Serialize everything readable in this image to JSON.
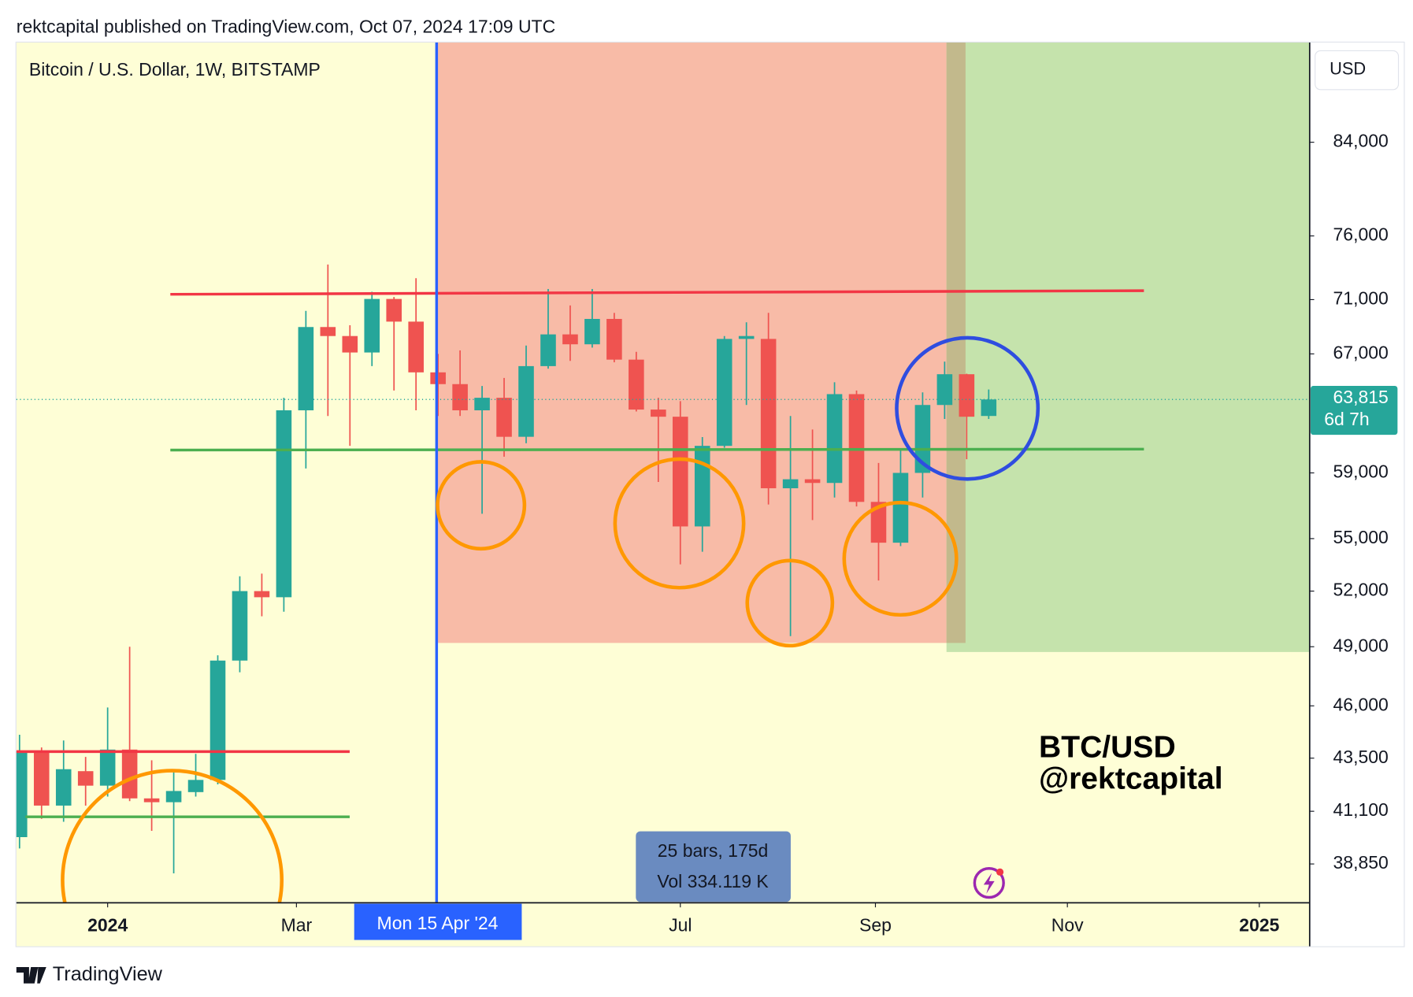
{
  "header": "rektcapital published on TradingView.com, Oct 07, 2024 17:09 UTC",
  "brand": "TradingView",
  "chart_data": {
    "type": "candlestick",
    "title": "Bitcoin / U.S. Dollar, 1W, BITSTAMP",
    "currency": "USD",
    "x": [
      "2023-12-04",
      "2023-12-11",
      "2023-12-18",
      "2023-12-25",
      "2024-01-01",
      "2024-01-08",
      "2024-01-15",
      "2024-01-22",
      "2024-01-29",
      "2024-02-05",
      "2024-02-12",
      "2024-02-19",
      "2024-02-26",
      "2024-03-04",
      "2024-03-11",
      "2024-03-18",
      "2024-03-25",
      "2024-04-01",
      "2024-04-08",
      "2024-04-15",
      "2024-04-22",
      "2024-04-29",
      "2024-05-06",
      "2024-05-13",
      "2024-05-20",
      "2024-05-27",
      "2024-06-03",
      "2024-06-10",
      "2024-06-17",
      "2024-06-24",
      "2024-07-01",
      "2024-07-08",
      "2024-07-15",
      "2024-07-22",
      "2024-07-29",
      "2024-08-05",
      "2024-08-12",
      "2024-08-19",
      "2024-08-26",
      "2024-09-02",
      "2024-09-09",
      "2024-09-16",
      "2024-09-23",
      "2024-09-30",
      "2024-10-07"
    ],
    "open": [
      39980,
      43830,
      41350,
      42900,
      42240,
      43900,
      41670,
      41500,
      41950,
      42500,
      48280,
      52000,
      51660,
      63080,
      68950,
      68290,
      67100,
      71050,
      69350,
      65690,
      64870,
      63080,
      63930,
      61320,
      66130,
      68410,
      67690,
      69550,
      66590,
      63130,
      62650,
      55720,
      60730,
      68080,
      68080,
      58040,
      58600,
      58370,
      64180,
      57200,
      54760,
      59000,
      63440,
      65560,
      62700
    ],
    "high": [
      44600,
      44000,
      44330,
      43560,
      45920,
      49000,
      43400,
      42900,
      43700,
      48550,
      52830,
      52980,
      63930,
      70150,
      73710,
      69080,
      71600,
      71200,
      72640,
      67000,
      67250,
      64740,
      65300,
      67600,
      71810,
      70560,
      71810,
      70000,
      67150,
      63930,
      63700,
      61300,
      68290,
      69300,
      70000,
      62700,
      61800,
      65000,
      64430,
      59630,
      60500,
      64300,
      66450,
      65600,
      64500
    ],
    "low": [
      39500,
      40770,
      40640,
      41350,
      41750,
      41550,
      40250,
      38460,
      41750,
      42300,
      47680,
      50620,
      50870,
      59280,
      62700,
      60730,
      66130,
      64430,
      63080,
      62700,
      62700,
      56480,
      60030,
      60900,
      65950,
      66500,
      67450,
      66400,
      63000,
      58430,
      53510,
      54230,
      60600,
      63440,
      57040,
      49560,
      56100,
      57470,
      56920,
      52590,
      54560,
      57470,
      62500,
      59870,
      62500
    ],
    "close": [
      43830,
      41350,
      42990,
      42240,
      43900,
      41670,
      41500,
      42000,
      42500,
      48280,
      52000,
      51660,
      63080,
      68950,
      68290,
      67100,
      71050,
      69350,
      65690,
      64870,
      63080,
      63930,
      61320,
      66130,
      68410,
      67690,
      69550,
      66590,
      63130,
      62650,
      55720,
      60730,
      68080,
      68290,
      58040,
      58600,
      58370,
      64180,
      57200,
      54760,
      59000,
      63440,
      65560,
      62650,
      63815
    ],
    "up_color": "#26a69a",
    "down_color": "#ef5350",
    "log_scale": true,
    "xlim": [
      "2023-12-03",
      "2025-01-17"
    ],
    "ylim": [
      37270,
      93440
    ],
    "xticks": [
      {
        "value": "2024-01-01",
        "label": "2024"
      },
      {
        "value": "2024-03-01",
        "label": "Mar"
      },
      {
        "value": "2024-07-01",
        "label": "Jul"
      },
      {
        "value": "2024-09-01",
        "label": "Sep"
      },
      {
        "value": "2024-11-01",
        "label": "Nov"
      },
      {
        "value": "2025-01-01",
        "label": "2025"
      }
    ],
    "yticks": [
      {
        "value": 38850,
        "label": "38,850"
      },
      {
        "value": 41100,
        "label": "41,100"
      },
      {
        "value": 43500,
        "label": "43,500"
      },
      {
        "value": 46000,
        "label": "46,000"
      },
      {
        "value": 49000,
        "label": "49,000"
      },
      {
        "value": 52000,
        "label": "52,000"
      },
      {
        "value": 55000,
        "label": "55,000"
      },
      {
        "value": 59000,
        "label": "59,000"
      },
      {
        "value": 67000,
        "label": "67,000"
      },
      {
        "value": 71000,
        "label": "71,000"
      },
      {
        "value": 76000,
        "label": "76,000"
      },
      {
        "value": 84000,
        "label": "84,000"
      }
    ],
    "last_price": {
      "value": 63815,
      "label": "63,815"
    },
    "countdown": "6d 7h",
    "crosshair_date": "Mon 15 Apr '24",
    "measure": {
      "range": "25 bars, 175d",
      "volume": "Vol 334.119 K"
    },
    "watermark": [
      "BTC/USD",
      "@rektcapital"
    ]
  }
}
